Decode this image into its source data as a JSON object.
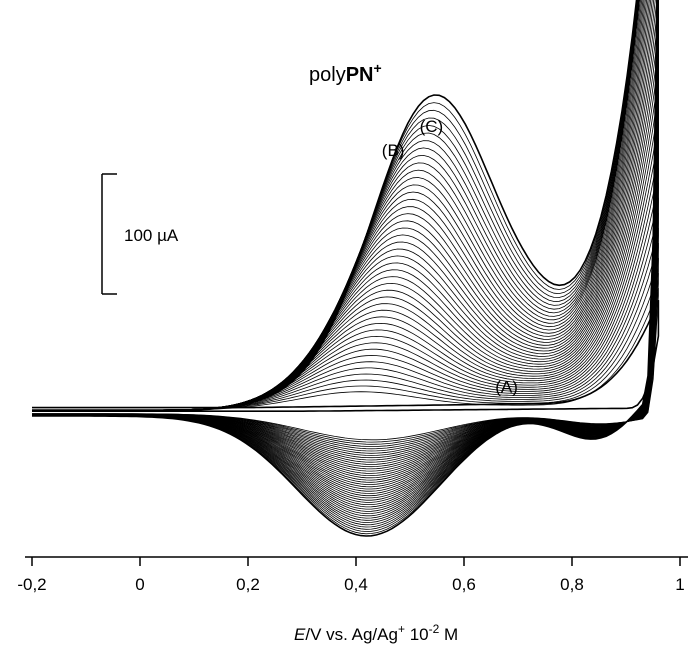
{
  "chart_data": {
    "type": "line",
    "title": {
      "prefix": "poly",
      "bold": "PN",
      "sup": "+"
    },
    "xlabel": {
      "italic": "E",
      "rest": "/V vs. Ag/Ag",
      "sup1": "+",
      "mid": " 10",
      "sup2": "-2",
      "tail": " M"
    },
    "ylabel": "",
    "xlim": [
      -0.2,
      1.0
    ],
    "x_ticks": [
      -0.2,
      0,
      0.2,
      0.4,
      0.6,
      0.8,
      1.0
    ],
    "x_tick_labels": [
      "-0,2",
      "0",
      "0,2",
      "0,4",
      "0,6",
      "0,8",
      "1"
    ],
    "y_axis": "not shown (scale bar only)",
    "ylim": [
      -110,
      430
    ],
    "scale_bar": {
      "label": "100 µA",
      "value": 100
    },
    "grid": false,
    "legend": "none",
    "cycles": 45,
    "annotations": [
      {
        "label": "(A)",
        "x": 0.68,
        "y": 8
      },
      {
        "label": "(B)",
        "x": 0.47,
        "y": 205
      },
      {
        "label": "(C)",
        "x": 0.54,
        "y": 225
      }
    ],
    "first_cycle": {
      "name": "first scan (A)",
      "anodic": [
        [
          -0.2,
          0
        ],
        [
          0.2,
          2
        ],
        [
          0.4,
          3
        ],
        [
          0.6,
          6
        ],
        [
          0.7,
          9
        ],
        [
          0.8,
          13
        ],
        [
          0.9,
          25
        ],
        [
          0.96,
          85
        ]
      ],
      "cathodic": [
        [
          0.96,
          85
        ],
        [
          0.93,
          30
        ],
        [
          0.88,
          20
        ],
        [
          0.8,
          12
        ],
        [
          0.6,
          5
        ],
        [
          0.4,
          2
        ],
        [
          0.2,
          0
        ],
        [
          -0.2,
          -2
        ]
      ]
    },
    "last_cycle": {
      "name": "last scan (C)",
      "anodic_peak": {
        "x": 0.54,
        "y": 213
      },
      "anodic_minimum": {
        "x": 0.78,
        "y": 123
      },
      "switching_current": 160,
      "cathodic_peak": {
        "x": 0.42,
        "y": -100
      },
      "cathodic_shoulder": {
        "x": 0.88,
        "y": -45
      }
    },
    "intermediate_peaks_first": {
      "x": 0.42,
      "anodic_y": 25,
      "cathodic_y": -20
    },
    "intermediate_peaks_last": {
      "x": 0.5,
      "anodic_y": 200,
      "cathodic_y": -95
    },
    "oxidation_onset_reversal": {
      "x": 0.96,
      "y_max": 425
    },
    "line_color": "#000000"
  }
}
